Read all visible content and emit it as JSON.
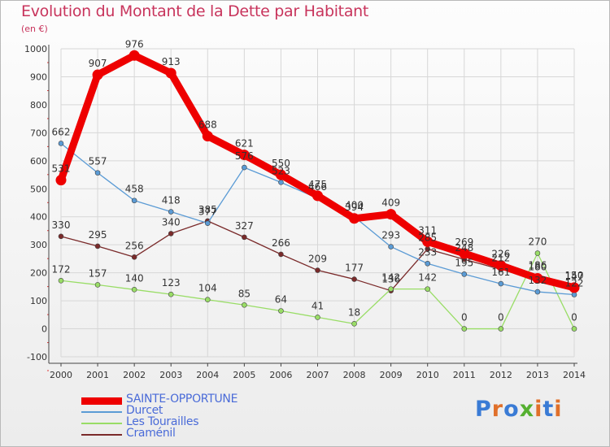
{
  "title": "Evolution du Montant de la Dette par Habitant",
  "subtitle": "(en €)",
  "logo": {
    "text": "Proxiti",
    "colors": [
      "#3a7bd5",
      "#e0702a",
      "#3a7bd5",
      "#55b030",
      "#e0702a",
      "#3a7bd5",
      "#e0702a"
    ]
  },
  "chart_data": {
    "type": "line",
    "x": [
      "2000",
      "2001",
      "2002",
      "2003",
      "2004",
      "2005",
      "2006",
      "2007",
      "2008",
      "2009",
      "2010",
      "2011",
      "2012",
      "2013",
      "2014"
    ],
    "ylim": [
      -100,
      1000
    ],
    "yticks": [
      "-100",
      "0",
      "100",
      "200",
      "300",
      "400",
      "500",
      "600",
      "700",
      "800",
      "900",
      "1000"
    ],
    "grid": true,
    "legend_position": "bottom-left",
    "series": [
      {
        "name": "SAINTE-OPPORTUNE",
        "color": "#ee0000",
        "width": 9,
        "values": [
          531,
          907,
          976,
          913,
          688,
          621,
          550,
          475,
          394,
          409,
          311,
          269,
          226,
          180,
          147
        ],
        "labels": [
          "531",
          "907",
          "976",
          "913",
          "688",
          "621",
          "550",
          "475",
          "394",
          "409",
          "311",
          "269",
          "226",
          "180",
          "147"
        ]
      },
      {
        "name": "Durcet",
        "color": "#5b9bd5",
        "width": 1.3,
        "values": [
          662,
          557,
          458,
          418,
          377,
          576,
          523,
          466,
          400,
          293,
          233,
          195,
          161,
          132,
          122
        ],
        "labels": [
          "662",
          "557",
          "458",
          "418",
          "377",
          "576",
          "523",
          "466",
          "400",
          "293",
          "233",
          "195",
          "161",
          "132",
          "122"
        ]
      },
      {
        "name": "Les Tourailles",
        "color": "#99dd66",
        "width": 1.3,
        "values": [
          172,
          157,
          140,
          123,
          104,
          85,
          64,
          41,
          18,
          142,
          142,
          0,
          0,
          270,
          0
        ],
        "labels": [
          "172",
          "157",
          "140",
          "123",
          "104",
          "85",
          "64",
          "41",
          "18",
          "142",
          "142",
          "0",
          "0",
          "270",
          "0"
        ]
      },
      {
        "name": "Craménil",
        "color": "#7a2a2a",
        "width": 1.3,
        "values": [
          330,
          295,
          256,
          340,
          385,
          327,
          266,
          209,
          177,
          136,
          285,
          248,
          212,
          186,
          150
        ],
        "labels": [
          "330",
          "295",
          "256",
          "340",
          "385",
          "327",
          "266",
          "209",
          "177",
          "136",
          "285",
          "248",
          "212",
          "186",
          "150"
        ]
      }
    ]
  }
}
